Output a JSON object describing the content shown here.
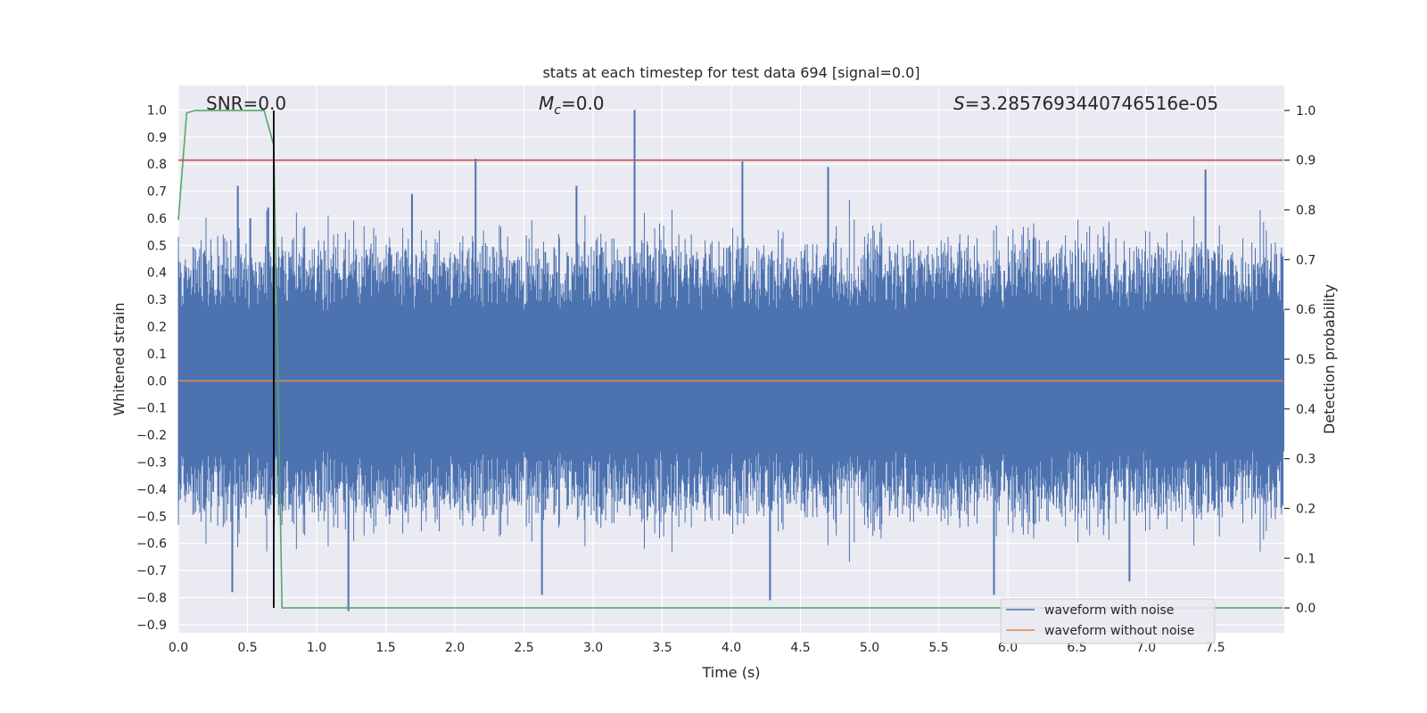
{
  "chart_data": {
    "type": "line",
    "title": "stats at each timestep for test data 694 [signal=0.0]",
    "xlabel": "Time (s)",
    "ylabel": "Whitened strain",
    "ylabel_right": "Detection probability",
    "xlim": [
      0.0,
      8.0
    ],
    "ylim": [
      -0.93,
      1.09
    ],
    "ylim_right": [
      -0.05,
      1.05
    ],
    "x_ticks": [
      "0.0",
      "0.5",
      "1.0",
      "1.5",
      "2.0",
      "2.5",
      "3.0",
      "3.5",
      "4.0",
      "4.5",
      "5.0",
      "5.5",
      "6.0",
      "6.5",
      "7.0",
      "7.5"
    ],
    "y_ticks": [
      "1.0",
      "0.9",
      "0.8",
      "0.7",
      "0.6",
      "0.5",
      "0.4",
      "0.3",
      "0.2",
      "0.1",
      "0.0",
      "−0.1",
      "−0.2",
      "−0.3",
      "−0.4",
      "−0.5",
      "−0.6",
      "−0.7",
      "−0.8",
      "−0.9"
    ],
    "y_right_ticks": [
      "1.0",
      "0.9",
      "0.8",
      "0.7",
      "0.6",
      "0.5",
      "0.4",
      "0.3",
      "0.2",
      "0.1",
      "0.0"
    ],
    "annotations": {
      "snr": "SNR=0.0",
      "mc_symbol": "M",
      "mc_sub": "c",
      "mc_value": "=0.0",
      "s_symbol": "S",
      "s_value": "=3.2857693440746516e-05"
    },
    "threshold": 0.9,
    "marker_time": 0.69,
    "noise_peaks": [
      {
        "x": 0.39,
        "y": -0.78
      },
      {
        "x": 0.43,
        "y": 0.72
      },
      {
        "x": 0.52,
        "y": 0.6
      },
      {
        "x": 0.65,
        "y": 0.64
      },
      {
        "x": 1.23,
        "y": -0.85
      },
      {
        "x": 1.69,
        "y": 0.69
      },
      {
        "x": 2.15,
        "y": 0.82
      },
      {
        "x": 2.63,
        "y": -0.79
      },
      {
        "x": 2.88,
        "y": 0.72
      },
      {
        "x": 3.3,
        "y": 1.0
      },
      {
        "x": 4.08,
        "y": 0.81
      },
      {
        "x": 4.28,
        "y": -0.81
      },
      {
        "x": 4.7,
        "y": 0.79
      },
      {
        "x": 5.9,
        "y": -0.79
      },
      {
        "x": 6.88,
        "y": -0.74
      },
      {
        "x": 7.43,
        "y": 0.78
      }
    ],
    "series": [
      {
        "name": "waveform with noise",
        "color": "#4c72b0",
        "axis": "left",
        "style": "noise",
        "envelope_abs": 0.45
      },
      {
        "name": "waveform without noise",
        "color": "#dd8452",
        "axis": "left",
        "x": [
          0.0,
          7.99
        ],
        "y": [
          0.0,
          0.0
        ]
      },
      {
        "name": "Detection probability",
        "color": "#55a868",
        "axis": "right",
        "x": [
          0.0,
          0.06,
          0.12,
          0.2,
          0.62,
          0.69,
          0.75,
          7.99
        ],
        "y": [
          0.78,
          0.995,
          1.0,
          1.0,
          1.0,
          0.93,
          0.0,
          0.0
        ]
      },
      {
        "name": "threshold",
        "color": "#c44e52",
        "axis": "right",
        "x": [
          0.0,
          7.99
        ],
        "y": [
          0.9,
          0.9
        ]
      }
    ],
    "legend": {
      "position": "lower-right",
      "entries": [
        {
          "label": "waveform with noise",
          "color": "#4c72b0"
        },
        {
          "label": "waveform without noise",
          "color": "#dd8452"
        }
      ]
    },
    "grid": true
  }
}
